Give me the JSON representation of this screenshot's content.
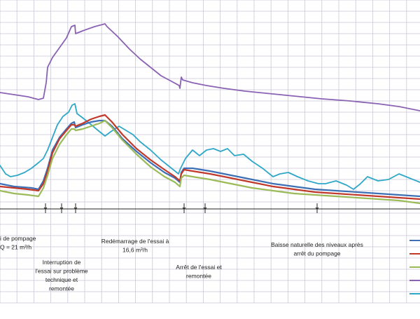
{
  "chart_data": {
    "type": "line",
    "title": "",
    "xlabel": "",
    "ylabel": "",
    "grid": true,
    "legend_placement": "right",
    "x_range": [
      0,
      600
    ],
    "y_range": [
      0,
      300
    ],
    "annotations": [
      {
        "lines": [
          "i de pompage",
          "Q = 21 m³/h"
        ],
        "align": "start",
        "x": 0
      },
      {
        "lines": [
          "Interruption de",
          "l'essai sur problème",
          "technique et",
          "remontée"
        ],
        "align": "middle",
        "x": 88
      },
      {
        "lines": [
          "Redémarrage de l'essai à",
          "16,6 m³/h"
        ],
        "align": "middle",
        "x": 193
      },
      {
        "lines": [
          "Arrêt de l'essai et",
          "remontée"
        ],
        "align": "middle",
        "x": 284
      },
      {
        "lines": [
          "Baisse naturelle des niveaux après",
          "arrêt du pompage"
        ],
        "align": "middle",
        "x": 453
      }
    ],
    "event_marks": [
      65,
      88,
      108,
      263,
      293,
      453
    ],
    "series": [
      {
        "color": "#8a62b4",
        "points": [
          [
            0,
            132
          ],
          [
            40,
            138
          ],
          [
            55,
            142
          ],
          [
            62,
            140
          ],
          [
            66,
            118
          ],
          [
            68,
            96
          ],
          [
            75,
            82
          ],
          [
            85,
            68
          ],
          [
            95,
            54
          ],
          [
            102,
            38
          ],
          [
            107,
            36
          ],
          [
            108,
            48
          ],
          [
            118,
            44
          ],
          [
            135,
            38
          ],
          [
            150,
            34
          ],
          [
            153,
            38
          ],
          [
            168,
            52
          ],
          [
            185,
            70
          ],
          [
            200,
            84
          ],
          [
            215,
            96
          ],
          [
            230,
            108
          ],
          [
            245,
            116
          ],
          [
            256,
            122
          ],
          [
            257,
            126
          ],
          [
            259,
            110
          ],
          [
            261,
            114
          ],
          [
            275,
            118
          ],
          [
            295,
            122
          ],
          [
            320,
            126
          ],
          [
            350,
            130
          ],
          [
            380,
            133
          ],
          [
            420,
            137
          ],
          [
            460,
            141
          ],
          [
            500,
            144
          ],
          [
            540,
            148
          ],
          [
            570,
            152
          ],
          [
            600,
            158
          ]
        ]
      },
      {
        "color": "#2fa7c8",
        "points": [
          [
            0,
            236
          ],
          [
            8,
            248
          ],
          [
            15,
            252
          ],
          [
            25,
            250
          ],
          [
            35,
            246
          ],
          [
            45,
            240
          ],
          [
            55,
            232
          ],
          [
            62,
            226
          ],
          [
            68,
            214
          ],
          [
            75,
            196
          ],
          [
            82,
            178
          ],
          [
            90,
            166
          ],
          [
            98,
            160
          ],
          [
            103,
            150
          ],
          [
            107,
            148
          ],
          [
            110,
            162
          ],
          [
            118,
            168
          ],
          [
            128,
            176
          ],
          [
            140,
            186
          ],
          [
            150,
            194
          ],
          [
            158,
            188
          ],
          [
            170,
            180
          ],
          [
            180,
            186
          ],
          [
            190,
            192
          ],
          [
            200,
            202
          ],
          [
            215,
            214
          ],
          [
            230,
            228
          ],
          [
            245,
            240
          ],
          [
            255,
            248
          ],
          [
            258,
            240
          ],
          [
            265,
            226
          ],
          [
            275,
            214
          ],
          [
            285,
            222
          ],
          [
            295,
            214
          ],
          [
            305,
            212
          ],
          [
            315,
            216
          ],
          [
            325,
            212
          ],
          [
            335,
            222
          ],
          [
            348,
            220
          ],
          [
            360,
            230
          ],
          [
            375,
            240
          ],
          [
            390,
            252
          ],
          [
            400,
            248
          ],
          [
            412,
            246
          ],
          [
            425,
            252
          ],
          [
            440,
            258
          ],
          [
            455,
            262
          ],
          [
            465,
            262
          ],
          [
            480,
            258
          ],
          [
            495,
            264
          ],
          [
            505,
            270
          ],
          [
            515,
            262
          ],
          [
            525,
            252
          ],
          [
            540,
            258
          ],
          [
            555,
            256
          ],
          [
            570,
            248
          ],
          [
            585,
            254
          ],
          [
            600,
            260
          ]
        ]
      },
      {
        "color": "#3d6fb5",
        "points": [
          [
            0,
            262
          ],
          [
            20,
            266
          ],
          [
            45,
            268
          ],
          [
            55,
            270
          ],
          [
            62,
            258
          ],
          [
            68,
            240
          ],
          [
            75,
            214
          ],
          [
            85,
            196
          ],
          [
            95,
            184
          ],
          [
            102,
            176
          ],
          [
            106,
            174
          ],
          [
            108,
            182
          ],
          [
            118,
            178
          ],
          [
            130,
            174
          ],
          [
            142,
            172
          ],
          [
            150,
            172
          ],
          [
            160,
            180
          ],
          [
            175,
            198
          ],
          [
            195,
            216
          ],
          [
            215,
            232
          ],
          [
            235,
            246
          ],
          [
            250,
            254
          ],
          [
            257,
            260
          ],
          [
            259,
            246
          ],
          [
            263,
            240
          ],
          [
            275,
            240
          ],
          [
            300,
            244
          ],
          [
            330,
            250
          ],
          [
            360,
            256
          ],
          [
            390,
            262
          ],
          [
            420,
            266
          ],
          [
            450,
            270
          ],
          [
            480,
            272
          ],
          [
            510,
            274
          ],
          [
            540,
            276
          ],
          [
            570,
            278
          ],
          [
            600,
            280
          ]
        ]
      },
      {
        "color": "#c0392b",
        "points": [
          [
            0,
            266
          ],
          [
            20,
            268
          ],
          [
            40,
            270
          ],
          [
            55,
            272
          ],
          [
            62,
            262
          ],
          [
            68,
            244
          ],
          [
            75,
            218
          ],
          [
            85,
            198
          ],
          [
            95,
            186
          ],
          [
            102,
            178
          ],
          [
            106,
            178
          ],
          [
            108,
            180
          ],
          [
            118,
            176
          ],
          [
            130,
            170
          ],
          [
            142,
            166
          ],
          [
            150,
            164
          ],
          [
            160,
            174
          ],
          [
            175,
            192
          ],
          [
            195,
            212
          ],
          [
            215,
            228
          ],
          [
            235,
            242
          ],
          [
            250,
            252
          ],
          [
            257,
            258
          ],
          [
            259,
            248
          ],
          [
            263,
            242
          ],
          [
            275,
            244
          ],
          [
            300,
            248
          ],
          [
            330,
            254
          ],
          [
            360,
            260
          ],
          [
            390,
            266
          ],
          [
            420,
            270
          ],
          [
            450,
            274
          ],
          [
            480,
            276
          ],
          [
            510,
            278
          ],
          [
            540,
            280
          ],
          [
            570,
            282
          ],
          [
            600,
            284
          ]
        ]
      },
      {
        "color": "#9bbb59",
        "points": [
          [
            0,
            272
          ],
          [
            20,
            276
          ],
          [
            40,
            278
          ],
          [
            55,
            280
          ],
          [
            62,
            268
          ],
          [
            68,
            250
          ],
          [
            75,
            226
          ],
          [
            85,
            206
          ],
          [
            95,
            192
          ],
          [
            102,
            184
          ],
          [
            106,
            184
          ],
          [
            108,
            186
          ],
          [
            118,
            184
          ],
          [
            130,
            180
          ],
          [
            142,
            176
          ],
          [
            150,
            172
          ],
          [
            160,
            182
          ],
          [
            175,
            200
          ],
          [
            195,
            220
          ],
          [
            215,
            238
          ],
          [
            235,
            252
          ],
          [
            250,
            260
          ],
          [
            257,
            266
          ],
          [
            259,
            254
          ],
          [
            263,
            250
          ],
          [
            275,
            252
          ],
          [
            300,
            256
          ],
          [
            330,
            262
          ],
          [
            360,
            268
          ],
          [
            390,
            272
          ],
          [
            420,
            276
          ],
          [
            450,
            278
          ],
          [
            480,
            280
          ],
          [
            510,
            282
          ],
          [
            540,
            284
          ],
          [
            570,
            286
          ],
          [
            600,
            290
          ]
        ]
      }
    ],
    "legend": [
      {
        "color": "#3d6fb5"
      },
      {
        "color": "#c0392b"
      },
      {
        "color": "#9bbb59"
      },
      {
        "color": "#8a62b4"
      },
      {
        "color": "#2fa7c8"
      }
    ]
  }
}
